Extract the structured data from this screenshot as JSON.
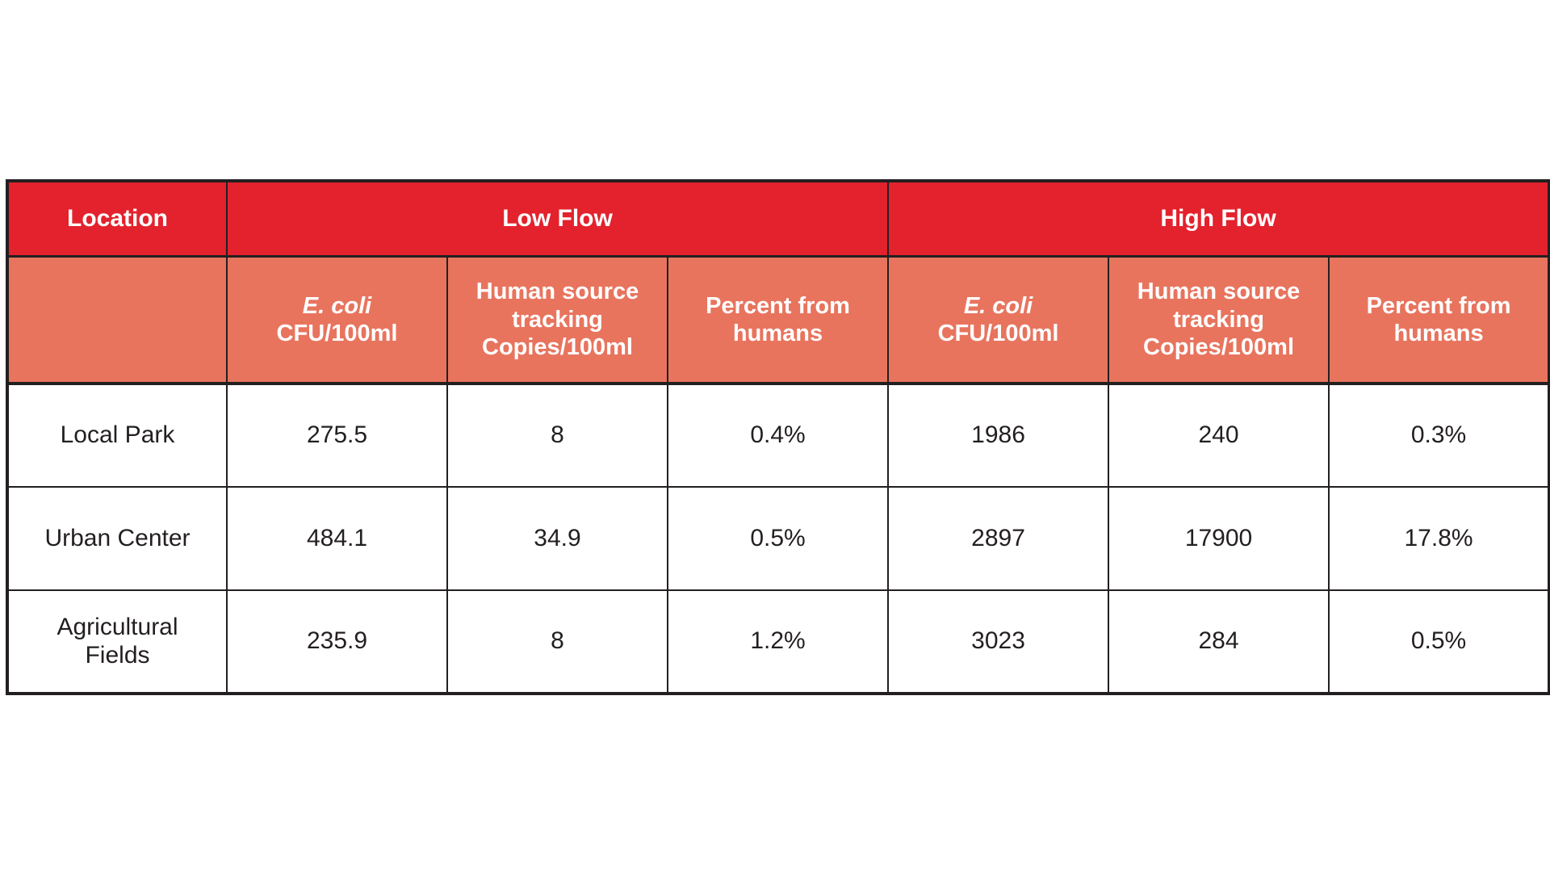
{
  "table": {
    "header": {
      "location_label": "Location",
      "low_flow_label": "Low Flow",
      "high_flow_label": "High Flow"
    },
    "subheaders": {
      "ecoli_line1": "E. coli",
      "ecoli_line2": "CFU/100ml",
      "hst_line1": "Human source",
      "hst_line2": "tracking",
      "hst_line3": "Copies/100ml",
      "percent_line1": "Percent from",
      "percent_line2": "humans"
    },
    "rows": [
      {
        "location": "Local Park",
        "values": [
          "275.5",
          "8",
          "0.4%",
          "1986",
          "240",
          "0.3%"
        ]
      },
      {
        "location": "Urban Center",
        "values": [
          "484.1",
          "34.9",
          "0.5%",
          "2897",
          "17900",
          "17.8%"
        ]
      },
      {
        "location": "Agricultural Fields",
        "values": [
          "235.9",
          "8",
          "1.2%",
          "3023",
          "284",
          "0.5%"
        ]
      }
    ],
    "colors": {
      "header_red": "#E3222D",
      "subheader_salmon": "#E8745E",
      "border_black": "#231F20",
      "header_text": "#ffffff",
      "body_text": "#231F20"
    }
  },
  "chart_data": {
    "type": "table",
    "title": "",
    "column_groups": [
      "Location",
      "Low Flow",
      "High Flow"
    ],
    "columns": [
      "Location",
      "Low Flow - E. coli CFU/100ml",
      "Low Flow - Human source tracking Copies/100ml",
      "Low Flow - Percent from humans",
      "High Flow - E. coli CFU/100ml",
      "High Flow - Human source tracking Copies/100ml",
      "High Flow - Percent from humans"
    ],
    "rows": [
      [
        "Local Park",
        275.5,
        8,
        "0.4%",
        1986,
        240,
        "0.3%"
      ],
      [
        "Urban Center",
        484.1,
        34.9,
        "0.5%",
        2897,
        17900,
        "17.8%"
      ],
      [
        "Agricultural Fields",
        235.9,
        8,
        "1.2%",
        3023,
        284,
        "0.5%"
      ]
    ]
  }
}
